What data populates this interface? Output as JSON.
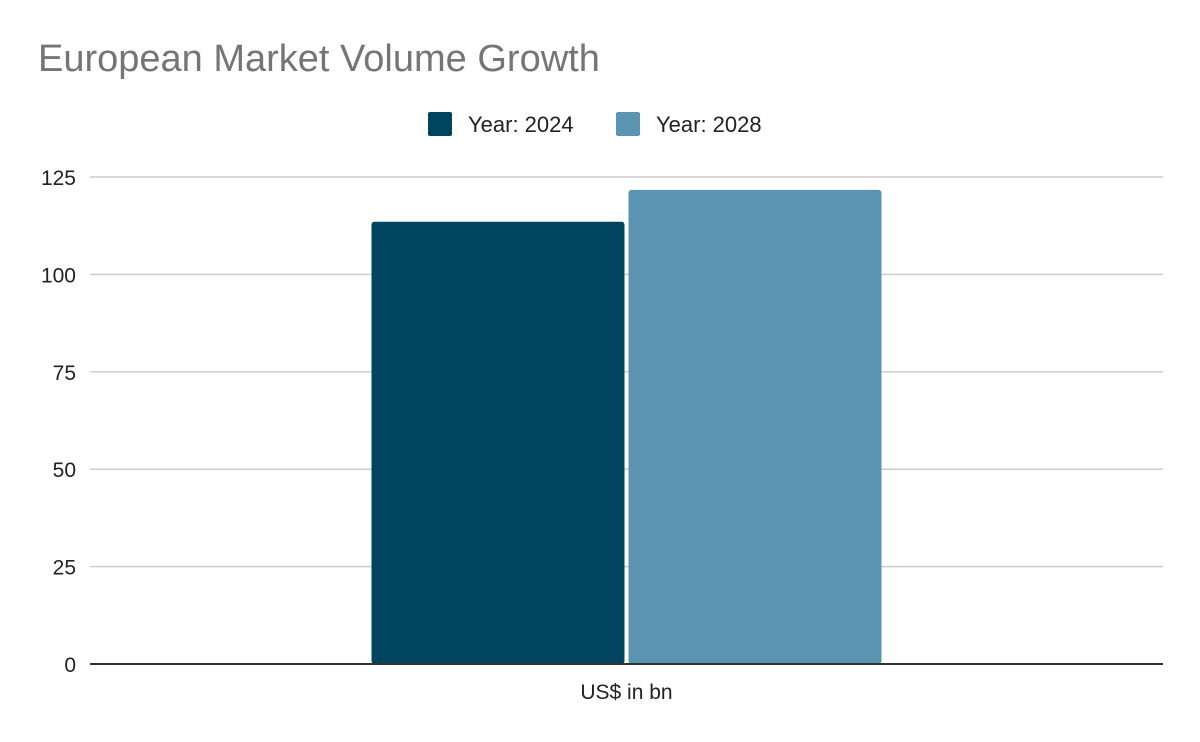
{
  "chart_data": {
    "type": "bar",
    "title": "European Market Volume Growth",
    "categories": [
      "US$ in bn"
    ],
    "series": [
      {
        "name": "Year: 2024",
        "values": [
          113.5
        ],
        "color": "#01445F"
      },
      {
        "name": "Year: 2028",
        "values": [
          121.7
        ],
        "color": "#5A94B1"
      }
    ],
    "xlabel": "",
    "ylabel": "",
    "ylim": [
      0,
      125
    ],
    "yticks": [
      "0",
      "25",
      "50",
      "75",
      "100",
      "125"
    ],
    "grid": true,
    "legend_position": "top-center"
  },
  "colors": {
    "title": "#757575",
    "gridline": "#CCCCCC",
    "axis": "#333333",
    "text": "#222222"
  }
}
